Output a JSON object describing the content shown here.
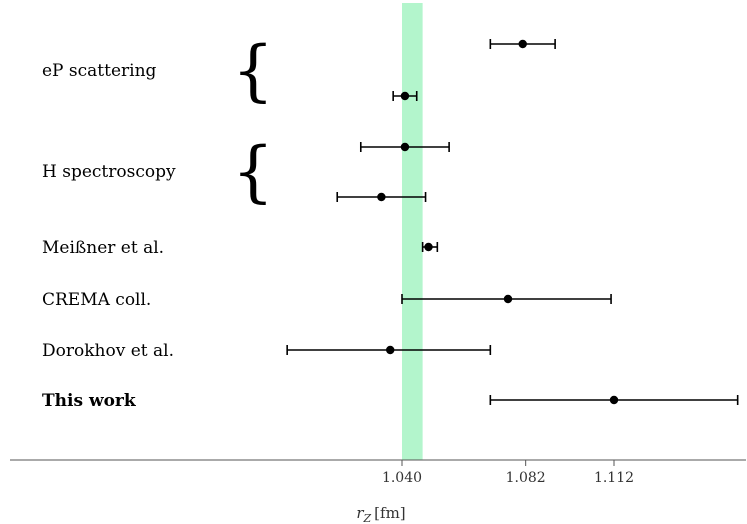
{
  "chart_data": {
    "type": "scatter",
    "subtype": "error-bar",
    "xlabel_var": "r",
    "xlabel_sub": "Z",
    "xlabel_unit": "[fm]",
    "xticks": [
      1.04,
      1.082,
      1.112
    ],
    "xtick_labels": [
      "1.040",
      "1.082",
      "1.112"
    ],
    "xlim": [
      1.0,
      1.154
    ],
    "band": {
      "from": 1.04,
      "to": 1.047,
      "color": "#b3f5cc"
    },
    "groups": [
      {
        "label": "eP scattering",
        "bold": false,
        "brace": true
      },
      {
        "label": "H spectroscopy",
        "bold": false,
        "brace": true
      },
      {
        "label": "Meißner et al.",
        "bold": false,
        "brace": false
      },
      {
        "label": "CREMA coll.",
        "bold": false,
        "brace": false
      },
      {
        "label": "Dorokhov et al.",
        "bold": false,
        "brace": false
      },
      {
        "label": "This work",
        "bold": true,
        "brace": false
      }
    ],
    "points": [
      {
        "group": 0,
        "row": 0,
        "x": 1.081,
        "xlo": 1.07,
        "xhi": 1.092
      },
      {
        "group": 0,
        "row": 1,
        "x": 1.041,
        "xlo": 1.037,
        "xhi": 1.045
      },
      {
        "group": 1,
        "row": 0,
        "x": 1.041,
        "xlo": 1.026,
        "xhi": 1.056
      },
      {
        "group": 1,
        "row": 1,
        "x": 1.033,
        "xlo": 1.018,
        "xhi": 1.048
      },
      {
        "group": 2,
        "row": 0,
        "x": 1.049,
        "xlo": 1.047,
        "xhi": 1.052
      },
      {
        "group": 3,
        "row": 0,
        "x": 1.076,
        "xlo": 1.04,
        "xhi": 1.111
      },
      {
        "group": 4,
        "row": 0,
        "x": 1.036,
        "xlo": 1.001,
        "xhi": 1.07
      },
      {
        "group": 5,
        "row": 0,
        "x": 1.112,
        "xlo": 1.07,
        "xhi": 1.154
      }
    ],
    "colors": {
      "point": "#000000",
      "axis": "#555555"
    }
  }
}
